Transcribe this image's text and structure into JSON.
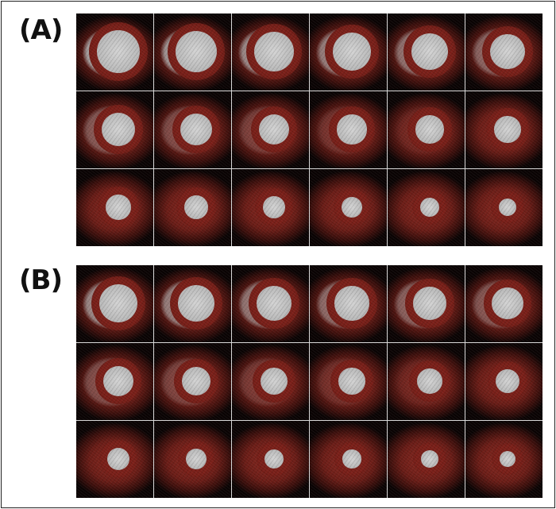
{
  "panels": [
    {
      "label": "(A)"
    },
    {
      "label": "(B)"
    }
  ],
  "colors": {
    "tissue": "#8a2a22",
    "blood_pool": "#c8c8c8",
    "background": "#0a0303",
    "separator": "#d8d8d8"
  }
}
